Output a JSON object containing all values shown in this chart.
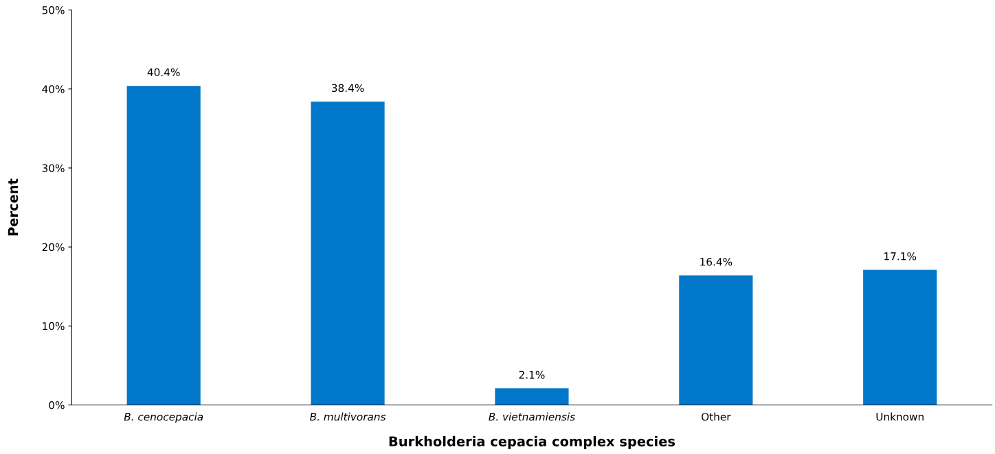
{
  "chart_data": {
    "type": "bar",
    "xlabel": "Burkholderia cepacia complex species",
    "ylabel": "Percent",
    "categories": [
      "B. cenocepacia",
      "B. multivorans",
      "B. vietnamiensis",
      "Other",
      "Unknown"
    ],
    "values": [
      40.4,
      38.4,
      2.1,
      16.4,
      17.1
    ],
    "value_labels": [
      "40.4%",
      "38.4%",
      "2.1%",
      "16.4%",
      "17.1%"
    ],
    "color": "#0077c8",
    "ylim": [
      0,
      50
    ],
    "yticks": [
      {
        "value": 0,
        "label": "0%"
      },
      {
        "value": 10,
        "label": "10%"
      },
      {
        "value": 20,
        "label": "20%"
      },
      {
        "value": 30,
        "label": "30%"
      },
      {
        "value": 40,
        "label": "40%"
      },
      {
        "value": 50,
        "label": "50%"
      }
    ],
    "grid": false,
    "legend": false
  }
}
